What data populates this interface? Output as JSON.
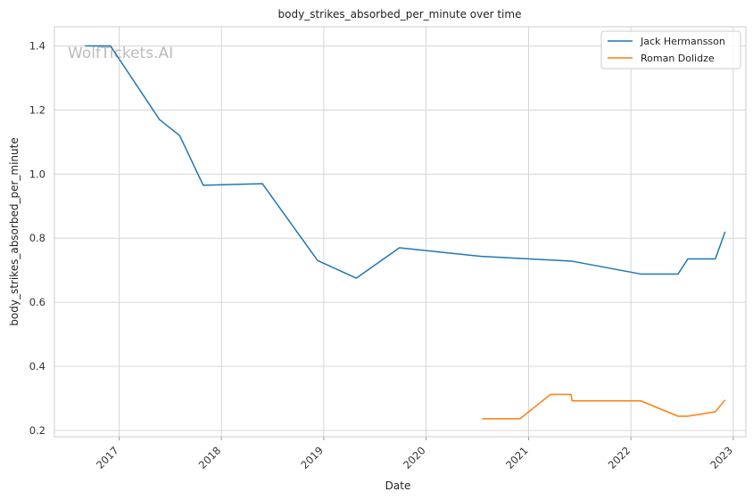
{
  "watermark": "WolfTickets.AI",
  "chart_data": {
    "type": "line",
    "title": "body_strikes_absorbed_per_minute over time",
    "xlabel": "Date",
    "ylabel": "body_strikes_absorbed_per_minute",
    "xlim": [
      "2016-05-15",
      "2023-02-15"
    ],
    "ylim": [
      0.18,
      1.46
    ],
    "x_ticks": [
      "2017",
      "2018",
      "2019",
      "2020",
      "2021",
      "2022",
      "2023"
    ],
    "y_ticks": [
      "0.2",
      "0.4",
      "0.6",
      "0.8",
      "1.0",
      "1.2",
      "1.4"
    ],
    "grid": true,
    "legend_position": "top-right",
    "series": [
      {
        "name": "Jack Hermansson",
        "color": "#1f77b4",
        "points": [
          {
            "x": "2016-09-01",
            "y": 1.4
          },
          {
            "x": "2016-12-01",
            "y": 1.4
          },
          {
            "x": "2017-05-25",
            "y": 1.17
          },
          {
            "x": "2017-08-05",
            "y": 1.12
          },
          {
            "x": "2017-10-28",
            "y": 0.965
          },
          {
            "x": "2018-05-27",
            "y": 0.97
          },
          {
            "x": "2018-12-10",
            "y": 0.73
          },
          {
            "x": "2019-04-27",
            "y": 0.675
          },
          {
            "x": "2019-09-28",
            "y": 0.77
          },
          {
            "x": "2020-07-15",
            "y": 0.743
          },
          {
            "x": "2021-06-05",
            "y": 0.728
          },
          {
            "x": "2022-02-05",
            "y": 0.688
          },
          {
            "x": "2022-06-18",
            "y": 0.688
          },
          {
            "x": "2022-07-23",
            "y": 0.735
          },
          {
            "x": "2022-10-29",
            "y": 0.735
          },
          {
            "x": "2022-12-03",
            "y": 0.82
          }
        ]
      },
      {
        "name": "Roman Dolidze",
        "color": "#ff7f0e",
        "points": [
          {
            "x": "2020-07-19",
            "y": 0.236
          },
          {
            "x": "2020-12-01",
            "y": 0.236
          },
          {
            "x": "2021-03-20",
            "y": 0.312
          },
          {
            "x": "2021-06-01",
            "y": 0.312
          },
          {
            "x": "2021-06-05",
            "y": 0.292
          },
          {
            "x": "2022-02-05",
            "y": 0.292
          },
          {
            "x": "2022-06-18",
            "y": 0.244
          },
          {
            "x": "2022-07-23",
            "y": 0.244
          },
          {
            "x": "2022-10-29",
            "y": 0.258
          },
          {
            "x": "2022-12-03",
            "y": 0.295
          }
        ]
      }
    ]
  }
}
